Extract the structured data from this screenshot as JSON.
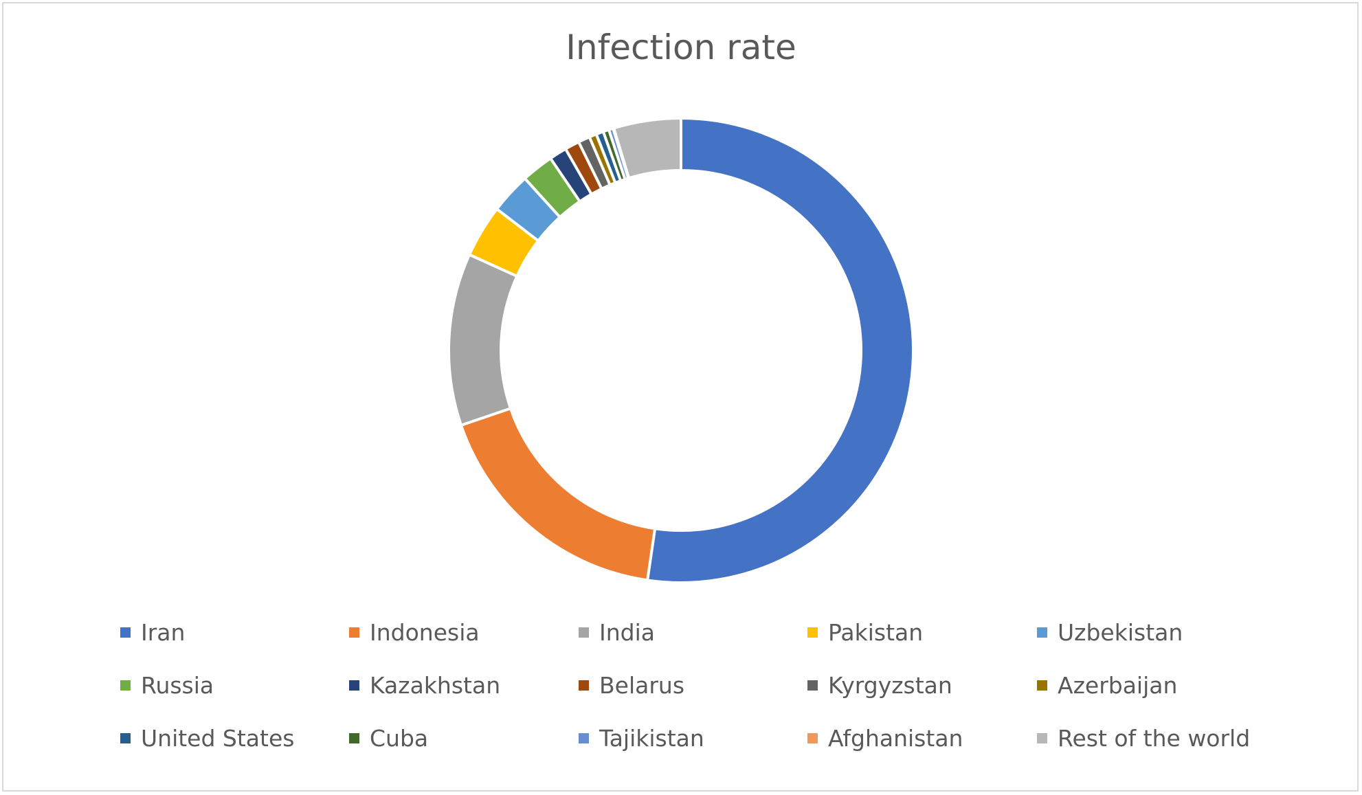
{
  "chart_data": {
    "type": "pie",
    "variant": "doughnut",
    "title": "Infection rate",
    "categories": [
      "Iran",
      "Indonesia",
      "India",
      "Pakistan",
      "Uzbekistan",
      "Russia",
      "Kazakhstan",
      "Belarus",
      "Kyrgyzstan",
      "Azerbaijan",
      "United States",
      "Cuba",
      "Tajikistan",
      "Afghanistan",
      "Rest of the world"
    ],
    "values": [
      51.5,
      17.2,
      11.8,
      3.6,
      2.8,
      2.2,
      1.2,
      1.0,
      0.8,
      0.5,
      0.5,
      0.4,
      0.3,
      0.05,
      4.6
    ],
    "colors": [
      "#4472C4",
      "#ED7D31",
      "#A5A5A5",
      "#FFC000",
      "#5B9BD5",
      "#70AD47",
      "#264478",
      "#9E480E",
      "#636363",
      "#997300",
      "#255E91",
      "#43682B",
      "#698ED0",
      "#F1975A",
      "#B7B7B7"
    ],
    "legend_position": "bottom",
    "legend_columns": 5,
    "start_angle_deg": 0,
    "direction": "clockwise"
  }
}
